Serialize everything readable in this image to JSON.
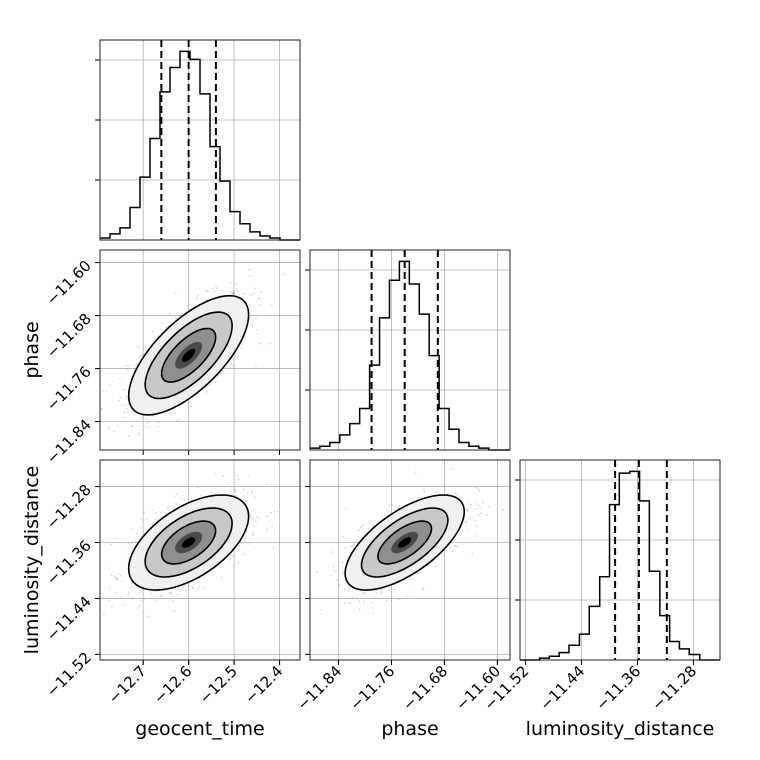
{
  "chart_data": {
    "type": "corner",
    "parameters": [
      "geocent_time",
      "phase",
      "luminosity_distance"
    ],
    "axes_labels": {
      "bottom": [
        "geocent_time",
        "phase",
        "luminosity_distance"
      ],
      "left": [
        "phase",
        "luminosity_distance"
      ]
    },
    "ticks": {
      "geocent_time": [
        "−12.7",
        "−12.6",
        "−12.5",
        "−12.4"
      ],
      "phase": [
        "−11.84",
        "−11.76",
        "−11.68",
        "−11.60"
      ],
      "luminosity_distance": [
        "−11.52",
        "−11.44",
        "−11.36",
        "−11.28"
      ]
    },
    "ranges": {
      "geocent_time": [
        -12.795,
        -12.355
      ],
      "phase": [
        -11.883,
        -11.581
      ],
      "luminosity_distance": [
        -11.528,
        -11.242
      ]
    },
    "marginals": [
      {
        "parameter": "geocent_time",
        "quantiles": [
          -12.66,
          -12.6,
          -12.54
        ],
        "bin_edges": [
          -12.795,
          -12.773,
          -12.751,
          -12.729,
          -12.707,
          -12.685,
          -12.663,
          -12.641,
          -12.619,
          -12.597,
          -12.575,
          -12.553,
          -12.531,
          -12.509,
          -12.487,
          -12.465,
          -12.443,
          -12.421,
          -12.399,
          -12.377,
          -12.355
        ],
        "counts": [
          1,
          3,
          6,
          16,
          31,
          50,
          73,
          85,
          93,
          89,
          72,
          46,
          29,
          14,
          8,
          4,
          2,
          1,
          0,
          0
        ]
      },
      {
        "parameter": "phase",
        "quantiles": [
          -11.79,
          -11.74,
          -11.69
        ],
        "bin_edges": [
          -11.883,
          -11.868,
          -11.853,
          -11.838,
          -11.823,
          -11.808,
          -11.793,
          -11.778,
          -11.763,
          -11.748,
          -11.733,
          -11.718,
          -11.703,
          -11.688,
          -11.673,
          -11.658,
          -11.643,
          -11.628,
          -11.613,
          -11.598,
          -11.581
        ],
        "counts": [
          1,
          2,
          4,
          8,
          14,
          22,
          45,
          70,
          90,
          100,
          88,
          72,
          50,
          22,
          11,
          4,
          2,
          1,
          0,
          0
        ]
      },
      {
        "parameter": "luminosity_distance",
        "quantiles": [
          -11.392,
          -11.358,
          -11.318
        ],
        "bin_edges": [
          -11.528,
          -11.514,
          -11.5,
          -11.486,
          -11.472,
          -11.458,
          -11.443,
          -11.429,
          -11.414,
          -11.4,
          -11.386,
          -11.371,
          -11.357,
          -11.343,
          -11.328,
          -11.314,
          -11.3,
          -11.286,
          -11.271,
          -11.257,
          -11.242
        ],
        "counts": [
          0,
          0,
          1,
          2,
          4,
          8,
          14,
          29,
          45,
          84,
          101,
          102,
          86,
          48,
          24,
          10,
          6,
          3,
          0,
          0
        ]
      }
    ],
    "pairs": [
      {
        "x": "geocent_time",
        "y": "phase",
        "mean": [
          -12.6,
          -11.74
        ],
        "sd": [
          0.066,
          0.045
        ],
        "corr": 0.68
      },
      {
        "x": "geocent_time",
        "y": "luminosity_distance",
        "mean": [
          -12.6,
          -11.36
        ],
        "sd": [
          0.066,
          0.034
        ],
        "corr": 0.55
      },
      {
        "x": "phase",
        "y": "luminosity_distance",
        "mean": [
          -11.74,
          -11.36
        ],
        "sd": [
          0.045,
          0.034
        ],
        "corr": 0.65
      }
    ],
    "grid": true,
    "colors": {
      "line": "#000000",
      "grid": "#b0b0b0",
      "points": "#8c8c8c"
    }
  }
}
